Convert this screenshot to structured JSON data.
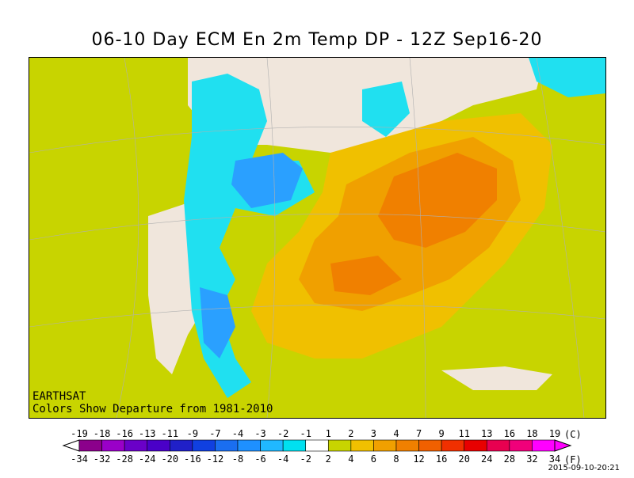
{
  "title": "06-10 Day ECM En 2m Temp DP - 12Z Sep16-20",
  "map": {
    "source_label": "EARTHSAT",
    "caption": "Colors Show Departure from 1981-2010"
  },
  "legend": {
    "unit_c": "(C)",
    "unit_f": "(F)",
    "celsius_labels": [
      "-19",
      "-18",
      "-16",
      "-13",
      "-11",
      "-9",
      "-7",
      "-4",
      "-3",
      "-2",
      "-1",
      "1",
      "2",
      "3",
      "4",
      "7",
      "9",
      "11",
      "13",
      "16",
      "18",
      "19"
    ],
    "fahrenheit_labels": [
      "-34",
      "-32",
      "-28",
      "-24",
      "-20",
      "-16",
      "-12",
      "-8",
      "-6",
      "-4",
      "-2",
      "2",
      "4",
      "6",
      "8",
      "12",
      "16",
      "20",
      "24",
      "28",
      "32",
      "34"
    ],
    "colors": [
      "#8b008b",
      "#9a00c8",
      "#6a00c8",
      "#4a00c8",
      "#2020c8",
      "#1040e0",
      "#1a6ef0",
      "#1e90ff",
      "#20b8ff",
      "#00e0f0",
      "#ffffff",
      "#c8d400",
      "#f0c000",
      "#f0a000",
      "#f08000",
      "#f06000",
      "#f03000",
      "#e80000",
      "#e80050",
      "#f0007a",
      "#ff00ff"
    ]
  },
  "timestamp": "2015-09-10-20:21"
}
